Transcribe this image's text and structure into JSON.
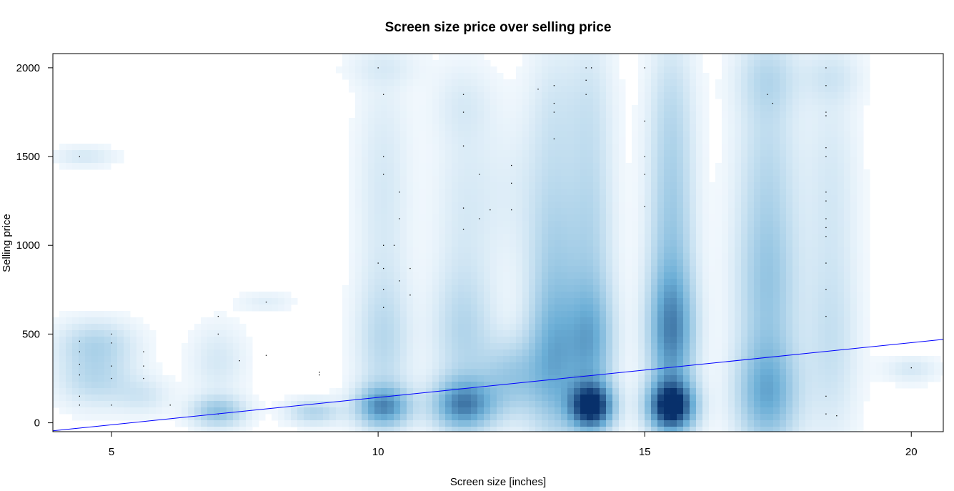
{
  "chart_data": {
    "type": "scatter",
    "title": "Screen size price over selling price",
    "xlabel": "Screen size [inches]",
    "ylabel": "Selling price",
    "xlim": [
      3.9,
      20.6
    ],
    "ylim": [
      -50,
      2080
    ],
    "xticks": [
      5,
      10,
      15,
      20
    ],
    "yticks": [
      0,
      500,
      1000,
      1500,
      2000
    ],
    "grid": false,
    "legend": "none",
    "colors": {
      "density_light": "#f7fbff",
      "density_dark": "#08306b",
      "regression_line": "#0000ff",
      "points": "#000000"
    },
    "regression_line": {
      "x1": 3.9,
      "y1": -45,
      "x2": 20.6,
      "y2": 470
    },
    "density_blobs": [
      {
        "x": 4.7,
        "y": 450,
        "sx": 0.5,
        "sy": 90,
        "w": 0.22
      },
      {
        "x": 4.7,
        "y": 250,
        "sx": 0.5,
        "sy": 110,
        "w": 0.22
      },
      {
        "x": 4.5,
        "y": 1500,
        "sx": 0.4,
        "sy": 40,
        "w": 0.12
      },
      {
        "x": 5.6,
        "y": 150,
        "sx": 0.35,
        "sy": 70,
        "w": 0.12
      },
      {
        "x": 7.0,
        "y": 60,
        "sx": 0.35,
        "sy": 60,
        "w": 0.35
      },
      {
        "x": 7.0,
        "y": 350,
        "sx": 0.35,
        "sy": 140,
        "w": 0.12
      },
      {
        "x": 7.9,
        "y": 680,
        "sx": 0.35,
        "sy": 40,
        "w": 0.08
      },
      {
        "x": 8.8,
        "y": 60,
        "sx": 0.35,
        "sy": 50,
        "w": 0.25
      },
      {
        "x": 10.1,
        "y": 90,
        "sx": 0.35,
        "sy": 80,
        "w": 0.6
      },
      {
        "x": 10.1,
        "y": 450,
        "sx": 0.35,
        "sy": 250,
        "w": 0.2
      },
      {
        "x": 10.1,
        "y": 1300,
        "sx": 0.35,
        "sy": 500,
        "w": 0.12
      },
      {
        "x": 10.1,
        "y": 2000,
        "sx": 0.5,
        "sy": 70,
        "w": 0.07
      },
      {
        "x": 11.6,
        "y": 100,
        "sx": 0.4,
        "sy": 100,
        "w": 0.65
      },
      {
        "x": 11.6,
        "y": 500,
        "sx": 0.4,
        "sy": 250,
        "w": 0.22
      },
      {
        "x": 11.6,
        "y": 1200,
        "sx": 0.4,
        "sy": 400,
        "w": 0.1
      },
      {
        "x": 11.6,
        "y": 1800,
        "sx": 0.4,
        "sy": 150,
        "w": 0.08
      },
      {
        "x": 12.5,
        "y": 250,
        "sx": 0.4,
        "sy": 150,
        "w": 0.3
      },
      {
        "x": 12.5,
        "y": 1300,
        "sx": 0.5,
        "sy": 300,
        "w": 0.07
      },
      {
        "x": 13.3,
        "y": 350,
        "sx": 0.35,
        "sy": 300,
        "w": 0.45
      },
      {
        "x": 13.3,
        "y": 1000,
        "sx": 0.35,
        "sy": 350,
        "w": 0.22
      },
      {
        "x": 13.3,
        "y": 1750,
        "sx": 0.35,
        "sy": 300,
        "w": 0.12
      },
      {
        "x": 14.0,
        "y": 90,
        "sx": 0.28,
        "sy": 90,
        "w": 1.0
      },
      {
        "x": 14.0,
        "y": 450,
        "sx": 0.3,
        "sy": 250,
        "w": 0.45
      },
      {
        "x": 14.0,
        "y": 1100,
        "sx": 0.3,
        "sy": 350,
        "w": 0.2
      },
      {
        "x": 14.0,
        "y": 1800,
        "sx": 0.3,
        "sy": 300,
        "w": 0.12
      },
      {
        "x": 15.5,
        "y": 90,
        "sx": 0.3,
        "sy": 100,
        "w": 1.05
      },
      {
        "x": 15.5,
        "y": 500,
        "sx": 0.3,
        "sy": 250,
        "w": 0.6
      },
      {
        "x": 15.5,
        "y": 1100,
        "sx": 0.3,
        "sy": 400,
        "w": 0.3
      },
      {
        "x": 15.5,
        "y": 1800,
        "sx": 0.3,
        "sy": 300,
        "w": 0.15
      },
      {
        "x": 17.3,
        "y": 150,
        "sx": 0.4,
        "sy": 200,
        "w": 0.45
      },
      {
        "x": 17.3,
        "y": 700,
        "sx": 0.4,
        "sy": 350,
        "w": 0.28
      },
      {
        "x": 17.3,
        "y": 1400,
        "sx": 0.4,
        "sy": 450,
        "w": 0.2
      },
      {
        "x": 17.3,
        "y": 1950,
        "sx": 0.4,
        "sy": 150,
        "w": 0.15
      },
      {
        "x": 18.5,
        "y": 400,
        "sx": 0.35,
        "sy": 350,
        "w": 0.15
      },
      {
        "x": 18.5,
        "y": 1300,
        "sx": 0.35,
        "sy": 500,
        "w": 0.12
      },
      {
        "x": 18.5,
        "y": 1950,
        "sx": 0.4,
        "sy": 100,
        "w": 0.1
      },
      {
        "x": 20.0,
        "y": 300,
        "sx": 0.35,
        "sy": 50,
        "w": 0.12
      }
    ],
    "points": [
      {
        "x": 4.4,
        "y": 460
      },
      {
        "x": 4.4,
        "y": 400
      },
      {
        "x": 4.4,
        "y": 330
      },
      {
        "x": 4.4,
        "y": 270
      },
      {
        "x": 4.4,
        "y": 150
      },
      {
        "x": 4.4,
        "y": 100
      },
      {
        "x": 4.4,
        "y": 1500
      },
      {
        "x": 5.0,
        "y": 500
      },
      {
        "x": 5.0,
        "y": 450
      },
      {
        "x": 5.0,
        "y": 320
      },
      {
        "x": 5.0,
        "y": 250
      },
      {
        "x": 5.0,
        "y": 100
      },
      {
        "x": 5.6,
        "y": 400
      },
      {
        "x": 5.6,
        "y": 320
      },
      {
        "x": 5.6,
        "y": 250
      },
      {
        "x": 6.1,
        "y": 100
      },
      {
        "x": 7.0,
        "y": 600
      },
      {
        "x": 7.0,
        "y": 500
      },
      {
        "x": 7.0,
        "y": 50
      },
      {
        "x": 7.4,
        "y": 350
      },
      {
        "x": 7.9,
        "y": 680
      },
      {
        "x": 7.9,
        "y": 380
      },
      {
        "x": 8.9,
        "y": 285
      },
      {
        "x": 8.9,
        "y": 270
      },
      {
        "x": 10.0,
        "y": 2000
      },
      {
        "x": 10.1,
        "y": 1850
      },
      {
        "x": 10.1,
        "y": 1500
      },
      {
        "x": 10.1,
        "y": 1400
      },
      {
        "x": 10.1,
        "y": 1000
      },
      {
        "x": 10.0,
        "y": 900
      },
      {
        "x": 10.1,
        "y": 870
      },
      {
        "x": 10.1,
        "y": 750
      },
      {
        "x": 10.1,
        "y": 650
      },
      {
        "x": 10.4,
        "y": 1300
      },
      {
        "x": 10.3,
        "y": 1000
      },
      {
        "x": 10.4,
        "y": 1150
      },
      {
        "x": 10.4,
        "y": 800
      },
      {
        "x": 10.6,
        "y": 870
      },
      {
        "x": 10.6,
        "y": 720
      },
      {
        "x": 11.6,
        "y": 1850
      },
      {
        "x": 11.6,
        "y": 1750
      },
      {
        "x": 11.6,
        "y": 1560
      },
      {
        "x": 11.6,
        "y": 1210
      },
      {
        "x": 11.6,
        "y": 1090
      },
      {
        "x": 11.9,
        "y": 1400
      },
      {
        "x": 11.9,
        "y": 1150
      },
      {
        "x": 12.1,
        "y": 1200
      },
      {
        "x": 12.5,
        "y": 1450
      },
      {
        "x": 12.5,
        "y": 1350
      },
      {
        "x": 12.5,
        "y": 1200
      },
      {
        "x": 13.0,
        "y": 1880
      },
      {
        "x": 13.3,
        "y": 1900
      },
      {
        "x": 13.3,
        "y": 1800
      },
      {
        "x": 13.3,
        "y": 1750
      },
      {
        "x": 13.3,
        "y": 1600
      },
      {
        "x": 13.9,
        "y": 2000
      },
      {
        "x": 14.0,
        "y": 2000
      },
      {
        "x": 13.9,
        "y": 1930
      },
      {
        "x": 13.9,
        "y": 1850
      },
      {
        "x": 15.0,
        "y": 2000
      },
      {
        "x": 15.0,
        "y": 1700
      },
      {
        "x": 15.0,
        "y": 1500
      },
      {
        "x": 15.0,
        "y": 1400
      },
      {
        "x": 15.0,
        "y": 1220
      },
      {
        "x": 17.3,
        "y": 1850
      },
      {
        "x": 17.4,
        "y": 1800
      },
      {
        "x": 18.4,
        "y": 2000
      },
      {
        "x": 18.4,
        "y": 1900
      },
      {
        "x": 18.4,
        "y": 1750
      },
      {
        "x": 18.4,
        "y": 1730
      },
      {
        "x": 18.4,
        "y": 1550
      },
      {
        "x": 18.4,
        "y": 1500
      },
      {
        "x": 18.4,
        "y": 1300
      },
      {
        "x": 18.4,
        "y": 1250
      },
      {
        "x": 18.4,
        "y": 1150
      },
      {
        "x": 18.4,
        "y": 1100
      },
      {
        "x": 18.4,
        "y": 1050
      },
      {
        "x": 18.4,
        "y": 900
      },
      {
        "x": 18.4,
        "y": 750
      },
      {
        "x": 18.4,
        "y": 600
      },
      {
        "x": 18.4,
        "y": 150
      },
      {
        "x": 18.4,
        "y": 50
      },
      {
        "x": 18.6,
        "y": 40
      },
      {
        "x": 20.0,
        "y": 310
      }
    ]
  }
}
